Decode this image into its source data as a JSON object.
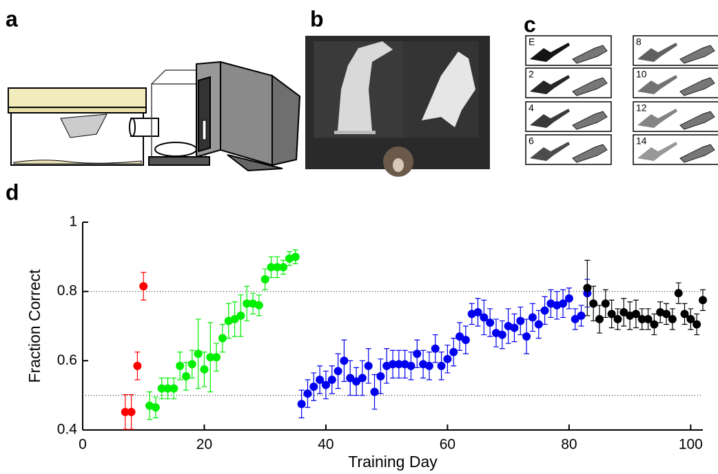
{
  "panel_labels": [
    "a",
    "b",
    "c",
    "d"
  ],
  "stimulus_labels": [
    "E",
    "2",
    "4",
    "6",
    "8",
    "10",
    "12",
    "14"
  ],
  "chart_data": {
    "type": "scatter",
    "x_label": "Training Day",
    "y_label": "Fraction Correct",
    "xlim": [
      0,
      102
    ],
    "xticks": [
      0,
      20,
      40,
      60,
      80,
      100
    ],
    "ylim": [
      0.4,
      1
    ],
    "yticks": [
      0.4,
      0.6,
      0.8,
      1
    ],
    "reference_lines": [
      0.5,
      0.8
    ],
    "series": [
      {
        "color": "#ff0000",
        "x": [
          7,
          8,
          9,
          10
        ],
        "values": [
          0.452,
          0.452,
          0.585,
          0.815
        ],
        "errors": [
          0.05,
          0.05,
          0.04,
          0.04
        ]
      },
      {
        "color": "#00ee00",
        "x": [
          11,
          12,
          13,
          14,
          15,
          16,
          17,
          18,
          19,
          20,
          21,
          22,
          23,
          24,
          25,
          26,
          27,
          28,
          29,
          30,
          31,
          32,
          33,
          34,
          35
        ],
        "values": [
          0.47,
          0.465,
          0.52,
          0.52,
          0.52,
          0.585,
          0.555,
          0.59,
          0.62,
          0.575,
          0.61,
          0.61,
          0.665,
          0.715,
          0.72,
          0.73,
          0.765,
          0.765,
          0.76,
          0.835,
          0.87,
          0.87,
          0.87,
          0.895,
          0.9
        ],
        "errors": [
          0.04,
          0.03,
          0.03,
          0.03,
          0.03,
          0.04,
          0.04,
          0.04,
          0.1,
          0.05,
          0.1,
          0.04,
          0.04,
          0.05,
          0.05,
          0.06,
          0.05,
          0.03,
          0.03,
          0.03,
          0.03,
          0.03,
          0.02,
          0.02,
          0.02
        ]
      },
      {
        "color": "#0000ee",
        "x": [
          36,
          37,
          38,
          39,
          40,
          41,
          42,
          43,
          44,
          45,
          46,
          47,
          48,
          49,
          50,
          51,
          52,
          53,
          54,
          55,
          56,
          57,
          58,
          59,
          60,
          61,
          62,
          63,
          64,
          65,
          66,
          67,
          68,
          69,
          70,
          71,
          72,
          73,
          74,
          75,
          76,
          77,
          78,
          79,
          80,
          81,
          82,
          83
        ],
        "values": [
          0.475,
          0.505,
          0.525,
          0.545,
          0.53,
          0.545,
          0.57,
          0.6,
          0.55,
          0.54,
          0.55,
          0.585,
          0.51,
          0.555,
          0.585,
          0.59,
          0.59,
          0.59,
          0.585,
          0.62,
          0.59,
          0.585,
          0.635,
          0.585,
          0.605,
          0.625,
          0.67,
          0.66,
          0.735,
          0.74,
          0.725,
          0.71,
          0.68,
          0.675,
          0.7,
          0.695,
          0.715,
          0.67,
          0.725,
          0.705,
          0.745,
          0.765,
          0.76,
          0.765,
          0.78,
          0.72,
          0.73,
          0.795
        ],
        "errors": [
          0.04,
          0.04,
          0.04,
          0.04,
          0.04,
          0.04,
          0.05,
          0.06,
          0.05,
          0.04,
          0.05,
          0.05,
          0.05,
          0.05,
          0.05,
          0.04,
          0.04,
          0.04,
          0.04,
          0.04,
          0.04,
          0.04,
          0.04,
          0.04,
          0.04,
          0.04,
          0.04,
          0.04,
          0.03,
          0.04,
          0.05,
          0.04,
          0.04,
          0.04,
          0.05,
          0.04,
          0.04,
          0.05,
          0.04,
          0.04,
          0.04,
          0.04,
          0.04,
          0.04,
          0.03,
          0.03,
          0.03,
          0.04
        ]
      },
      {
        "color": "#000000",
        "x": [
          83,
          84,
          85,
          86,
          87,
          88,
          89,
          90,
          91,
          92,
          93,
          94,
          95,
          96,
          97,
          98,
          99,
          100,
          101,
          102
        ],
        "values": [
          0.81,
          0.765,
          0.72,
          0.765,
          0.735,
          0.72,
          0.74,
          0.73,
          0.735,
          0.72,
          0.72,
          0.705,
          0.74,
          0.735,
          0.72,
          0.795,
          0.735,
          0.72,
          0.705,
          0.775
        ],
        "errors": [
          0.08,
          0.05,
          0.04,
          0.04,
          0.04,
          0.03,
          0.04,
          0.04,
          0.04,
          0.03,
          0.03,
          0.03,
          0.03,
          0.03,
          0.03,
          0.03,
          0.03,
          0.03,
          0.03,
          0.03
        ]
      }
    ]
  }
}
